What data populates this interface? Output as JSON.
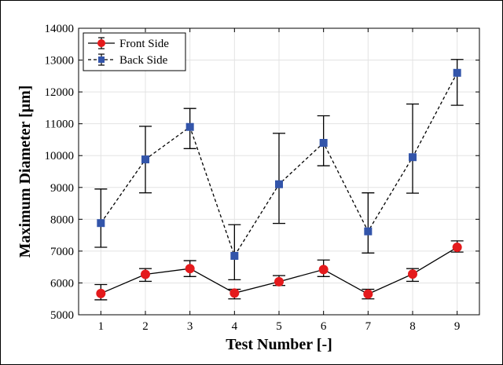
{
  "chart_data": {
    "type": "line",
    "xlabel": "Test Number [-]",
    "ylabel": "Maximum Diameter [μm]",
    "x": [
      1,
      2,
      3,
      4,
      5,
      6,
      7,
      8,
      9
    ],
    "xlim": [
      0.5,
      9.5
    ],
    "ylim": [
      5000,
      14000
    ],
    "xticks": [
      1,
      2,
      3,
      4,
      5,
      6,
      7,
      8,
      9
    ],
    "yticks": [
      5000,
      6000,
      7000,
      8000,
      9000,
      10000,
      11000,
      12000,
      13000,
      14000
    ],
    "grid": true,
    "legend_position": "top-left",
    "series": [
      {
        "name": "Front Side",
        "color": "#000000",
        "marker_color": "#e41a1c",
        "marker": "circle",
        "line_style": "solid",
        "values": [
          5670,
          6270,
          6450,
          5680,
          6040,
          6420,
          5650,
          6280,
          7120
        ],
        "err_low": [
          5470,
          6050,
          6200,
          5500,
          5920,
          6200,
          5500,
          6050,
          6970
        ],
        "err_high": [
          5950,
          6450,
          6700,
          5800,
          6230,
          6720,
          5800,
          6450,
          7320
        ]
      },
      {
        "name": "Back Side",
        "color": "#000000",
        "marker_color": "#3355aa",
        "marker": "square",
        "line_style": "dashed",
        "values": [
          7880,
          9880,
          10900,
          6850,
          9100,
          10400,
          7620,
          9950,
          12600
        ],
        "err_low": [
          7120,
          8830,
          10220,
          6100,
          7870,
          9680,
          6940,
          8820,
          11580
        ],
        "err_high": [
          8950,
          10920,
          11480,
          7830,
          10700,
          11250,
          8830,
          11620,
          13020
        ]
      }
    ]
  }
}
